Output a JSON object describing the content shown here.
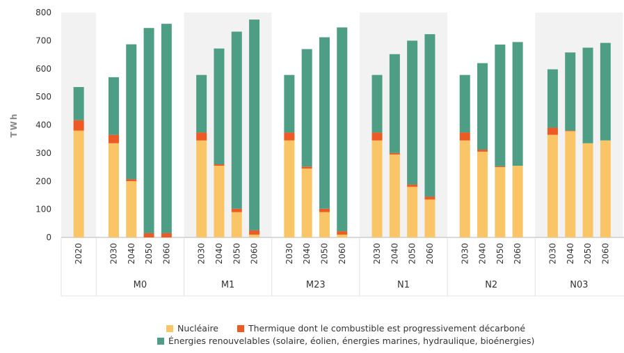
{
  "chart_data": {
    "type": "bar",
    "stacked": true,
    "ylabel": "TWh",
    "ylim": [
      0,
      800
    ],
    "yticks": [
      0,
      100,
      200,
      300,
      400,
      500,
      600,
      700,
      800
    ],
    "groups": [
      {
        "name": "",
        "years": [
          "2020"
        ]
      },
      {
        "name": "M0",
        "years": [
          "2030",
          "2040",
          "2050",
          "2060"
        ]
      },
      {
        "name": "M1",
        "years": [
          "2030",
          "2040",
          "2050",
          "2060"
        ]
      },
      {
        "name": "M23",
        "years": [
          "2030",
          "2040",
          "2050",
          "2060"
        ]
      },
      {
        "name": "N1",
        "years": [
          "2030",
          "2040",
          "2050",
          "2060"
        ]
      },
      {
        "name": "N2",
        "years": [
          "2030",
          "2040",
          "2050",
          "2060"
        ]
      },
      {
        "name": "N03",
        "years": [
          "2030",
          "2040",
          "2050",
          "2060"
        ]
      }
    ],
    "series": [
      {
        "name": "Nucléaire",
        "color": "#f9c566",
        "values": [
          380,
          335,
          200,
          0,
          0,
          345,
          255,
          90,
          10,
          345,
          245,
          90,
          10,
          345,
          295,
          180,
          135,
          345,
          305,
          250,
          255,
          365,
          378,
          335,
          345
        ]
      },
      {
        "name": "Thermique dont le combustible est progressivement décarboné",
        "color": "#ee5a24",
        "values": [
          37,
          30,
          7,
          15,
          15,
          28,
          5,
          12,
          15,
          28,
          7,
          12,
          12,
          28,
          5,
          8,
          10,
          28,
          7,
          3,
          0,
          25,
          2,
          0,
          0
        ]
      },
      {
        "name": "Énergies renouvelables (solaire, éolien, énergies marines, hydraulique, bioénergies)",
        "color": "#4e9e86",
        "values": [
          118,
          205,
          480,
          730,
          745,
          205,
          412,
          630,
          750,
          205,
          418,
          610,
          725,
          205,
          352,
          512,
          578,
          205,
          308,
          433,
          440,
          208,
          278,
          340,
          347
        ]
      }
    ],
    "legend_position": "bottom-center"
  }
}
